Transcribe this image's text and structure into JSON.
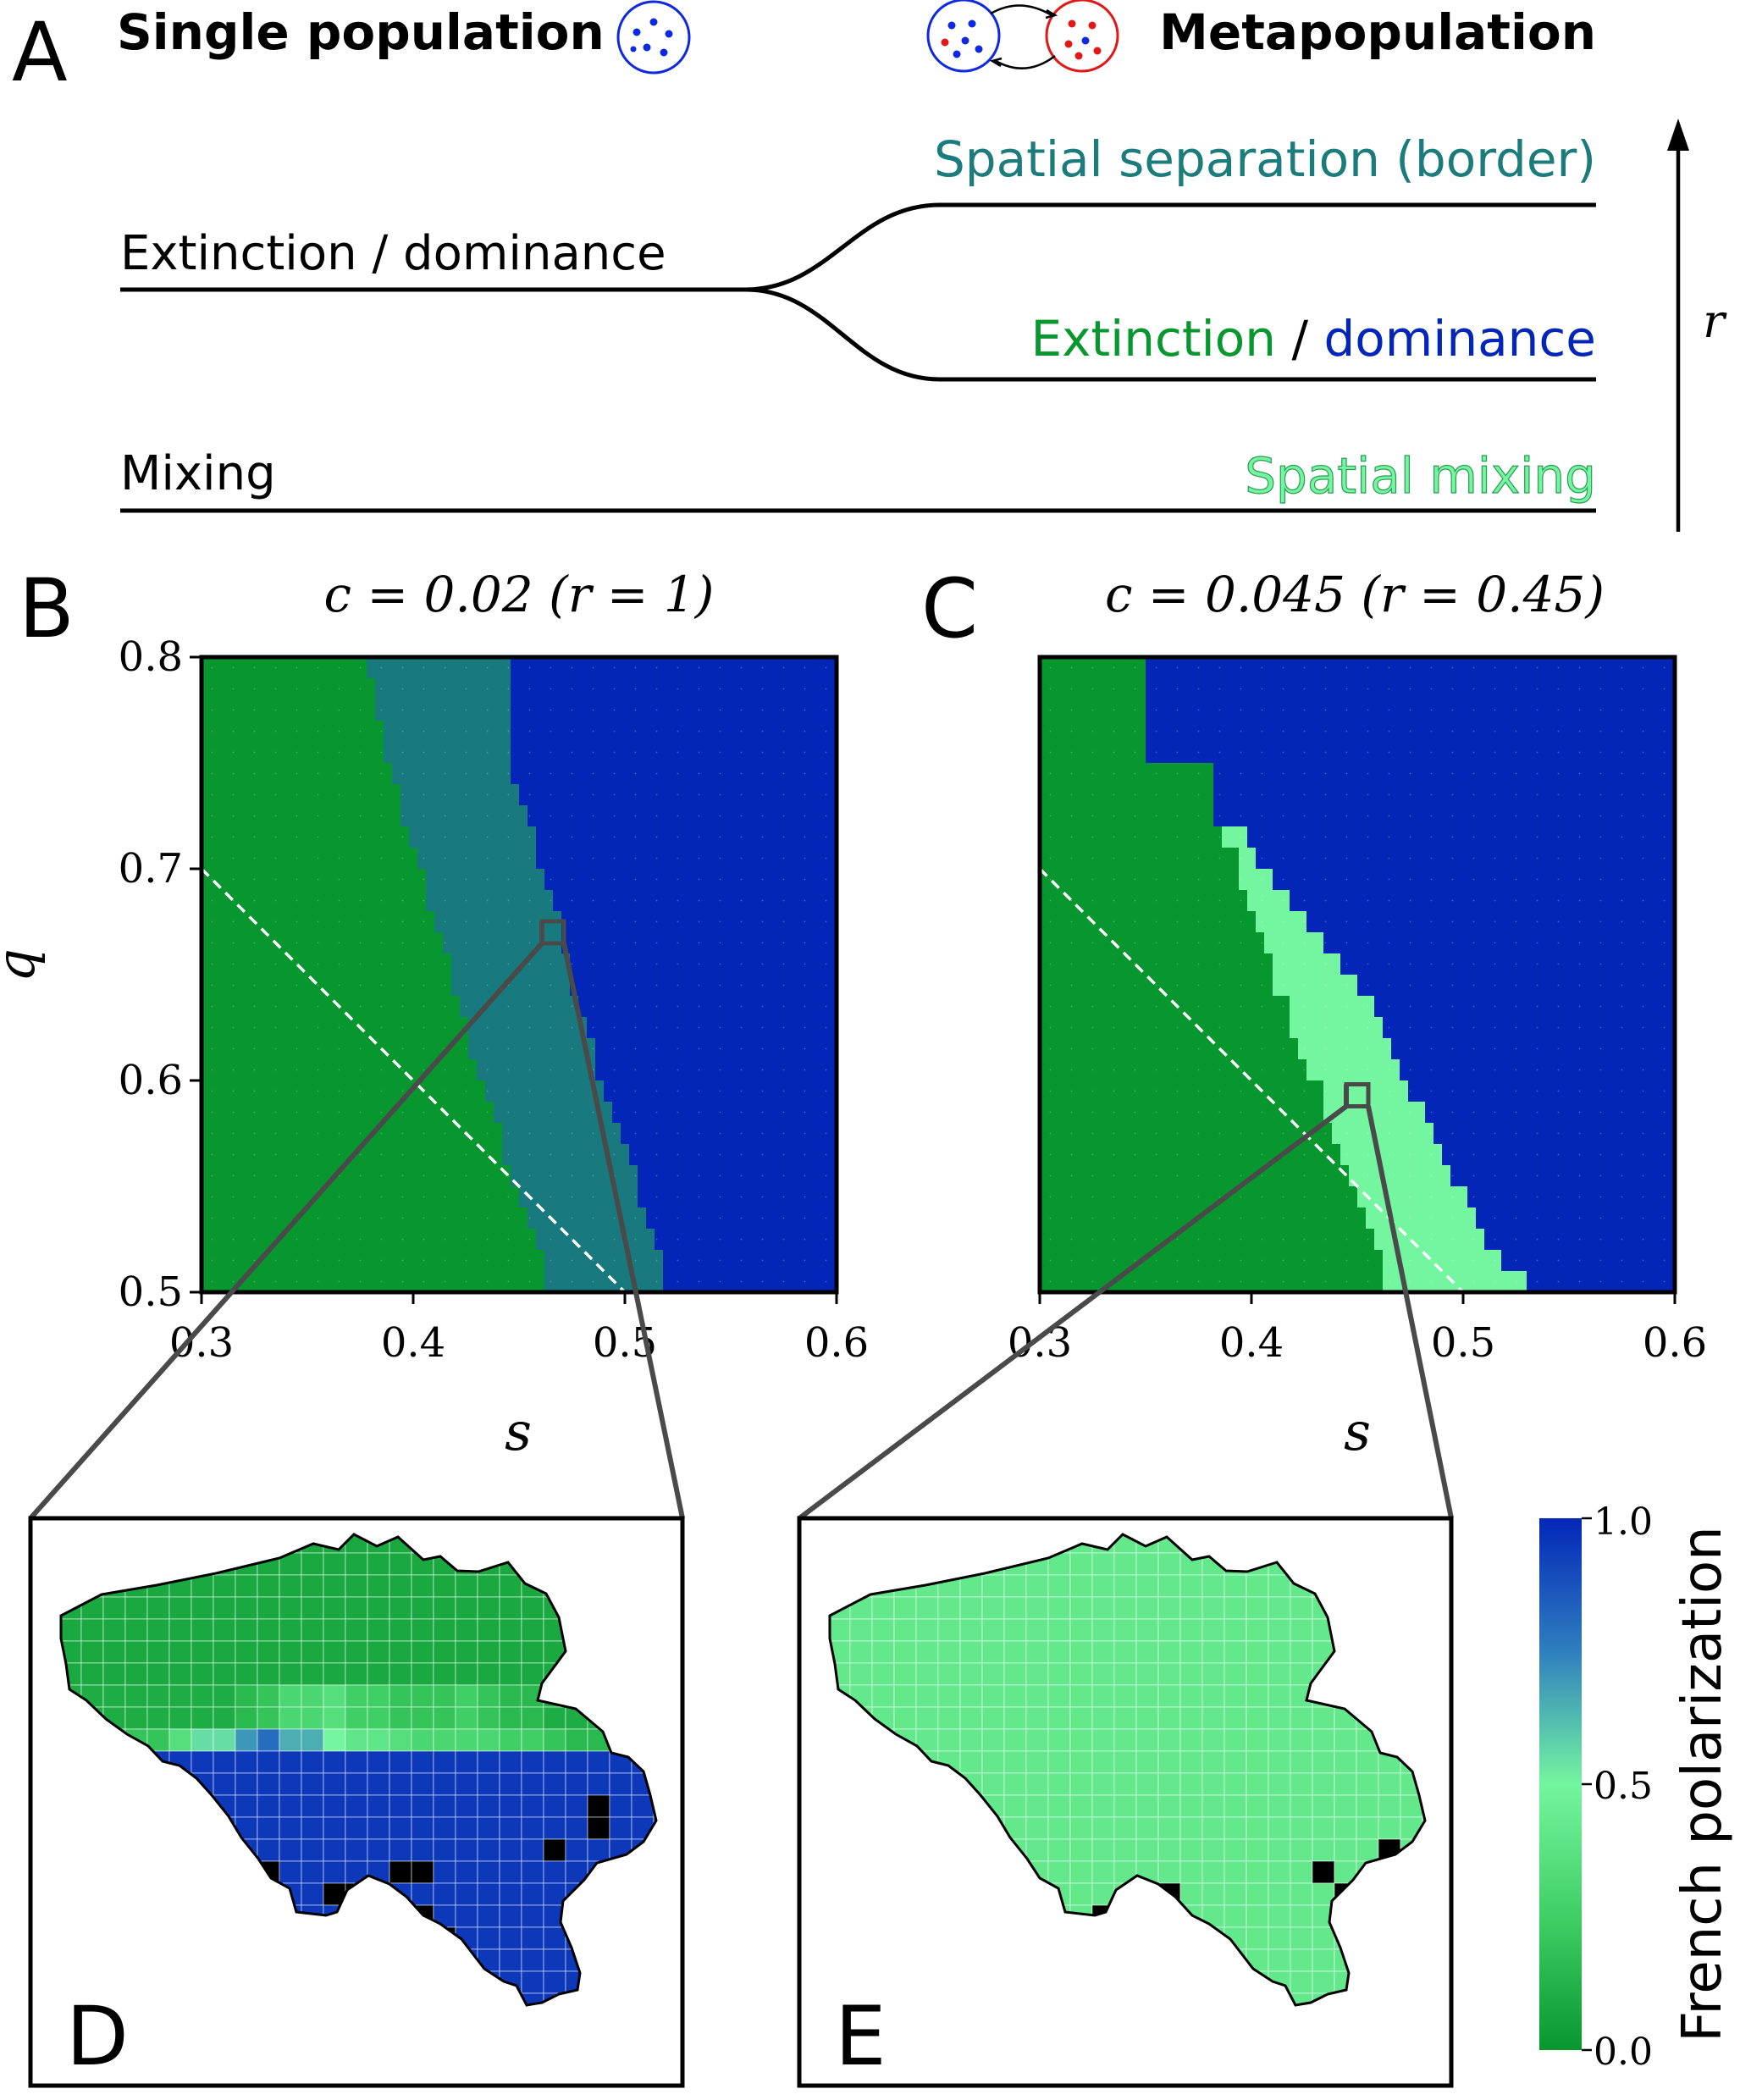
{
  "panel_letters": {
    "a": "A",
    "b": "B",
    "c": "C",
    "d": "D",
    "e": "E"
  },
  "panel_a": {
    "left_heading": "Single population",
    "right_heading": "Metapopulation",
    "single_left_upper": "Extinction / dominance",
    "single_left_lower": "Mixing",
    "meta_upper": "Spatial separation (border)",
    "meta_middle_part1": "Extinction",
    "meta_middle_sep": " / ",
    "meta_middle_part2": "dominance",
    "meta_lower": "Spatial mixing",
    "axis_label": "r"
  },
  "colors": {
    "extinction": "#07972e",
    "dominance": "#0326b8",
    "border": "#187a7e",
    "mixing": "#74f59f",
    "spatial_separation_text": "#1c7b7b",
    "dashed_line": "#ffffff",
    "zoom_lines": "#4a4a4a",
    "map_outside": "#000000"
  },
  "chart_data": [
    {
      "type": "heatmap",
      "panel": "B",
      "title": "c = 0.02 (r = 1)",
      "xlabel": "s",
      "ylabel": "q",
      "xlim": [
        0.3,
        0.6
      ],
      "ylim": [
        0.5,
        0.8
      ],
      "xticks": [
        "0.3",
        "0.4",
        "0.5",
        "0.6"
      ],
      "yticks": [
        "0.8",
        "0.7",
        "0.6",
        "0.5"
      ],
      "regime_boundaries_note": "per q-row: s where green ends, s where blue begins",
      "rows_q": [
        0.795,
        0.785,
        0.775,
        0.765,
        0.755,
        0.745,
        0.735,
        0.725,
        0.715,
        0.705,
        0.695,
        0.685,
        0.675,
        0.665,
        0.655,
        0.645,
        0.635,
        0.625,
        0.615,
        0.605,
        0.595,
        0.585,
        0.575,
        0.565,
        0.555,
        0.545,
        0.535,
        0.525,
        0.515,
        0.505
      ],
      "green_end_s": [
        0.378,
        0.382,
        0.382,
        0.386,
        0.386,
        0.39,
        0.394,
        0.394,
        0.398,
        0.402,
        0.406,
        0.406,
        0.41,
        0.414,
        0.418,
        0.418,
        0.422,
        0.426,
        0.426,
        0.43,
        0.434,
        0.438,
        0.442,
        0.442,
        0.446,
        0.45,
        0.454,
        0.458,
        0.462,
        0.462
      ],
      "blue_start_s": [
        0.446,
        0.446,
        0.446,
        0.446,
        0.446,
        0.446,
        0.45,
        0.454,
        0.458,
        0.458,
        0.462,
        0.466,
        0.47,
        0.47,
        0.474,
        0.474,
        0.478,
        0.482,
        0.486,
        0.486,
        0.49,
        0.494,
        0.498,
        0.502,
        0.506,
        0.506,
        0.51,
        0.514,
        0.518,
        0.518
      ],
      "dashed_line": {
        "from": [
          0.3,
          0.7
        ],
        "to": [
          0.5,
          0.5
        ]
      },
      "zoom_point": {
        "s": 0.466,
        "q": 0.67
      }
    },
    {
      "type": "heatmap",
      "panel": "C",
      "title": "c = 0.045 (r = 0.45)",
      "xlabel": "s",
      "ylabel": "",
      "xlim": [
        0.3,
        0.6
      ],
      "ylim": [
        0.5,
        0.8
      ],
      "xticks": [
        "0.3",
        "0.4",
        "0.5",
        "0.6"
      ],
      "rows_q": [
        0.795,
        0.785,
        0.775,
        0.765,
        0.755,
        0.745,
        0.735,
        0.725,
        0.715,
        0.705,
        0.695,
        0.685,
        0.675,
        0.665,
        0.655,
        0.645,
        0.635,
        0.625,
        0.615,
        0.605,
        0.595,
        0.585,
        0.575,
        0.565,
        0.555,
        0.545,
        0.535,
        0.525,
        0.515,
        0.505
      ],
      "green_end_s": [
        0.35,
        0.35,
        0.35,
        0.35,
        0.35,
        0.382,
        0.382,
        0.382,
        0.386,
        0.394,
        0.394,
        0.398,
        0.402,
        0.406,
        0.41,
        0.41,
        0.418,
        0.418,
        0.422,
        0.426,
        0.434,
        0.434,
        0.438,
        0.442,
        0.446,
        0.45,
        0.454,
        0.458,
        0.462,
        0.462
      ],
      "blue_start_s": [
        0.35,
        0.35,
        0.35,
        0.35,
        0.35,
        0.382,
        0.382,
        0.382,
        0.398,
        0.402,
        0.41,
        0.418,
        0.426,
        0.434,
        0.442,
        0.45,
        0.458,
        0.462,
        0.466,
        0.47,
        0.474,
        0.482,
        0.486,
        0.49,
        0.494,
        0.502,
        0.506,
        0.51,
        0.518,
        0.53
      ],
      "dashed_line": {
        "from": [
          0.3,
          0.7
        ],
        "to": [
          0.5,
          0.5
        ]
      },
      "zoom_point": {
        "s": 0.45,
        "q": 0.593
      }
    }
  ],
  "maps": {
    "d_pol_rows": [
      [
        0.08,
        0.08,
        0.08,
        0.08,
        0.08,
        0.08,
        0.08,
        0.08,
        0.08,
        0.08,
        0.08,
        0.08,
        0.08,
        0.08,
        0.08,
        0.08,
        0.08,
        0.08,
        0.08
      ],
      [
        0.1,
        0.1,
        0.1,
        0.1,
        0.1,
        0.15,
        0.2,
        0.3,
        0.35,
        0.25,
        0.2,
        0.2,
        0.25,
        0.2,
        0.15,
        0.1,
        0.1,
        0.1,
        0.1
      ],
      [
        0.1,
        0.12,
        0.2,
        0.35,
        0.55,
        0.7,
        0.8,
        0.65,
        0.5,
        0.4,
        0.35,
        0.3,
        0.3,
        0.3,
        0.25,
        0.2,
        0.15,
        0.1,
        0.1
      ],
      [
        0.95,
        0.95,
        0.95,
        0.95,
        0.95,
        0.95,
        0.95,
        0.95,
        0.95,
        0.95,
        0.95,
        0.95,
        0.95,
        0.95,
        0.95,
        0.95,
        0.95,
        0.95,
        0.95
      ]
    ],
    "e_pol": 0.42,
    "colorbar_label": "French polarization",
    "colorbar_ticks": [
      "1.0",
      "0.5",
      "0.0"
    ]
  }
}
